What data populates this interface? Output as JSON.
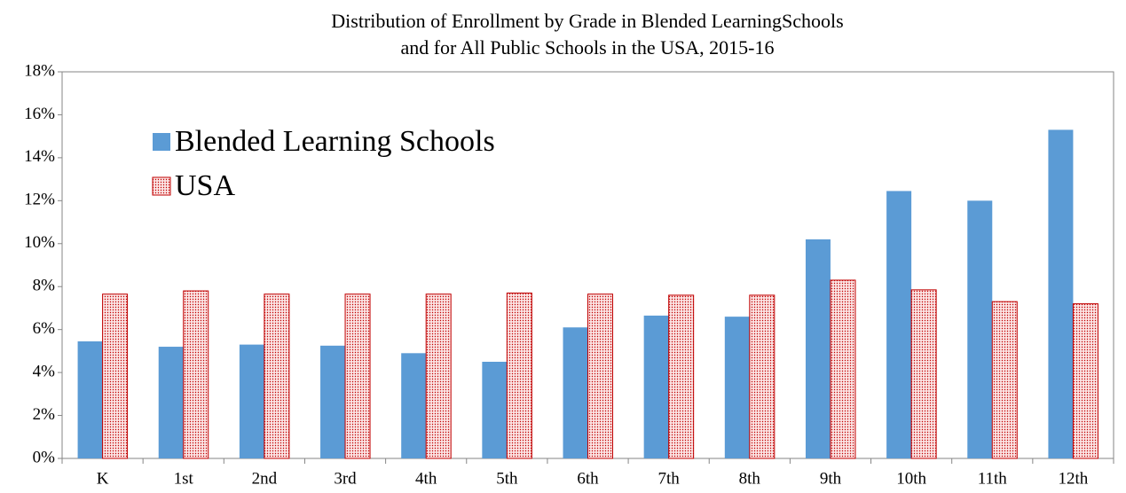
{
  "chart_data": {
    "type": "bar",
    "title": [
      "Distribution of Enrollment by Grade in Blended LearningSchools",
      "and for All Public Schools in the USA, 2015-16"
    ],
    "categories": [
      "K",
      "1st",
      "2nd",
      "3rd",
      "4th",
      "5th",
      "6th",
      "7th",
      "8th",
      "9th",
      "10th",
      "11th",
      "12th"
    ],
    "series": [
      {
        "name": "Blended Learning Schools",
        "color": "#5b9bd5",
        "values": [
          5.45,
          5.2,
          5.3,
          5.25,
          4.9,
          4.5,
          6.1,
          6.65,
          6.6,
          10.2,
          12.45,
          12.0,
          15.3
        ]
      },
      {
        "name": "USA",
        "color": "#c00000",
        "fill_pattern": "dots",
        "values": [
          7.65,
          7.8,
          7.65,
          7.65,
          7.65,
          7.7,
          7.65,
          7.6,
          7.6,
          8.3,
          7.85,
          7.3,
          7.2
        ]
      }
    ],
    "ylim": [
      0,
      18
    ],
    "yticks": [
      {
        "value": 0,
        "label": "0%"
      },
      {
        "value": 2,
        "label": "2%"
      },
      {
        "value": 4,
        "label": "4%"
      },
      {
        "value": 6,
        "label": "6%"
      },
      {
        "value": 8,
        "label": "8%"
      },
      {
        "value": 10,
        "label": "10%"
      },
      {
        "value": 12,
        "label": "12%"
      },
      {
        "value": 14,
        "label": "14%"
      },
      {
        "value": 16,
        "label": "16%"
      },
      {
        "value": 18,
        "label": "18%"
      }
    ],
    "grid": false,
    "legend": "upper left"
  }
}
